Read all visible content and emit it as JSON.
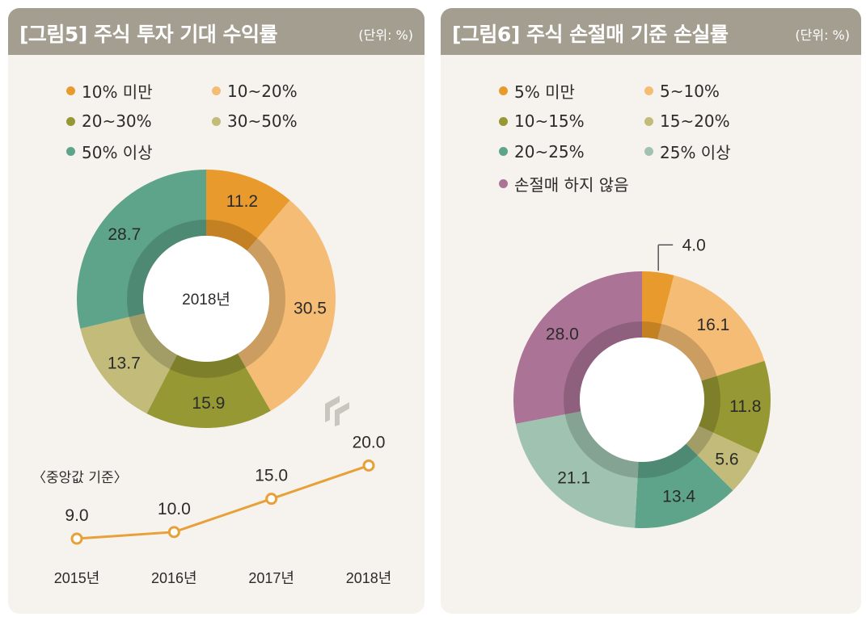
{
  "colors": {
    "header_bg": "#a39e8f",
    "panel_bg": "#f6f3ee",
    "line": "#e8a038"
  },
  "chart_data": [
    {
      "type": "pie",
      "variant": "donut",
      "title": "[그림5] 주식 투자 기대 수익률",
      "unit": "(단위: %)",
      "center_label": "2018년",
      "categories": [
        "10% 미만",
        "10~20%",
        "20~30%",
        "30~50%",
        "50% 이상"
      ],
      "values": [
        11.2,
        30.5,
        15.9,
        13.7,
        28.7
      ],
      "labels": [
        "11.2",
        "30.5",
        "15.9",
        "13.7",
        "28.7"
      ],
      "colors": [
        "#e99a2c",
        "#f4bc74",
        "#969833",
        "#c2bb7a",
        "#5ea48a"
      ]
    },
    {
      "type": "line",
      "title": "〈중앙값 기준〉",
      "x": [
        "2015년",
        "2016년",
        "2017년",
        "2018년"
      ],
      "values": [
        9.0,
        10.0,
        15.0,
        20.0
      ],
      "labels": [
        "9.0",
        "10.0",
        "15.0",
        "20.0"
      ],
      "ylim": [
        5,
        22
      ],
      "color": "#e8a038"
    },
    {
      "type": "pie",
      "variant": "donut",
      "title": "[그림6] 주식 손절매 기준 손실률",
      "unit": "(단위: %)",
      "center_label": "",
      "categories": [
        "5% 미만",
        "5~10%",
        "10~15%",
        "15~20%",
        "20~25%",
        "25% 이상",
        "손절매 하지 않음"
      ],
      "values": [
        4.0,
        16.1,
        11.8,
        5.6,
        13.4,
        21.1,
        28.0
      ],
      "labels": [
        "4.0",
        "16.1",
        "11.8",
        "5.6",
        "13.4",
        "21.1",
        "28.0"
      ],
      "colors": [
        "#e99a2c",
        "#f4bc74",
        "#969833",
        "#c2bb7a",
        "#5ea48a",
        "#9fc3b0",
        "#ab7396"
      ]
    }
  ]
}
